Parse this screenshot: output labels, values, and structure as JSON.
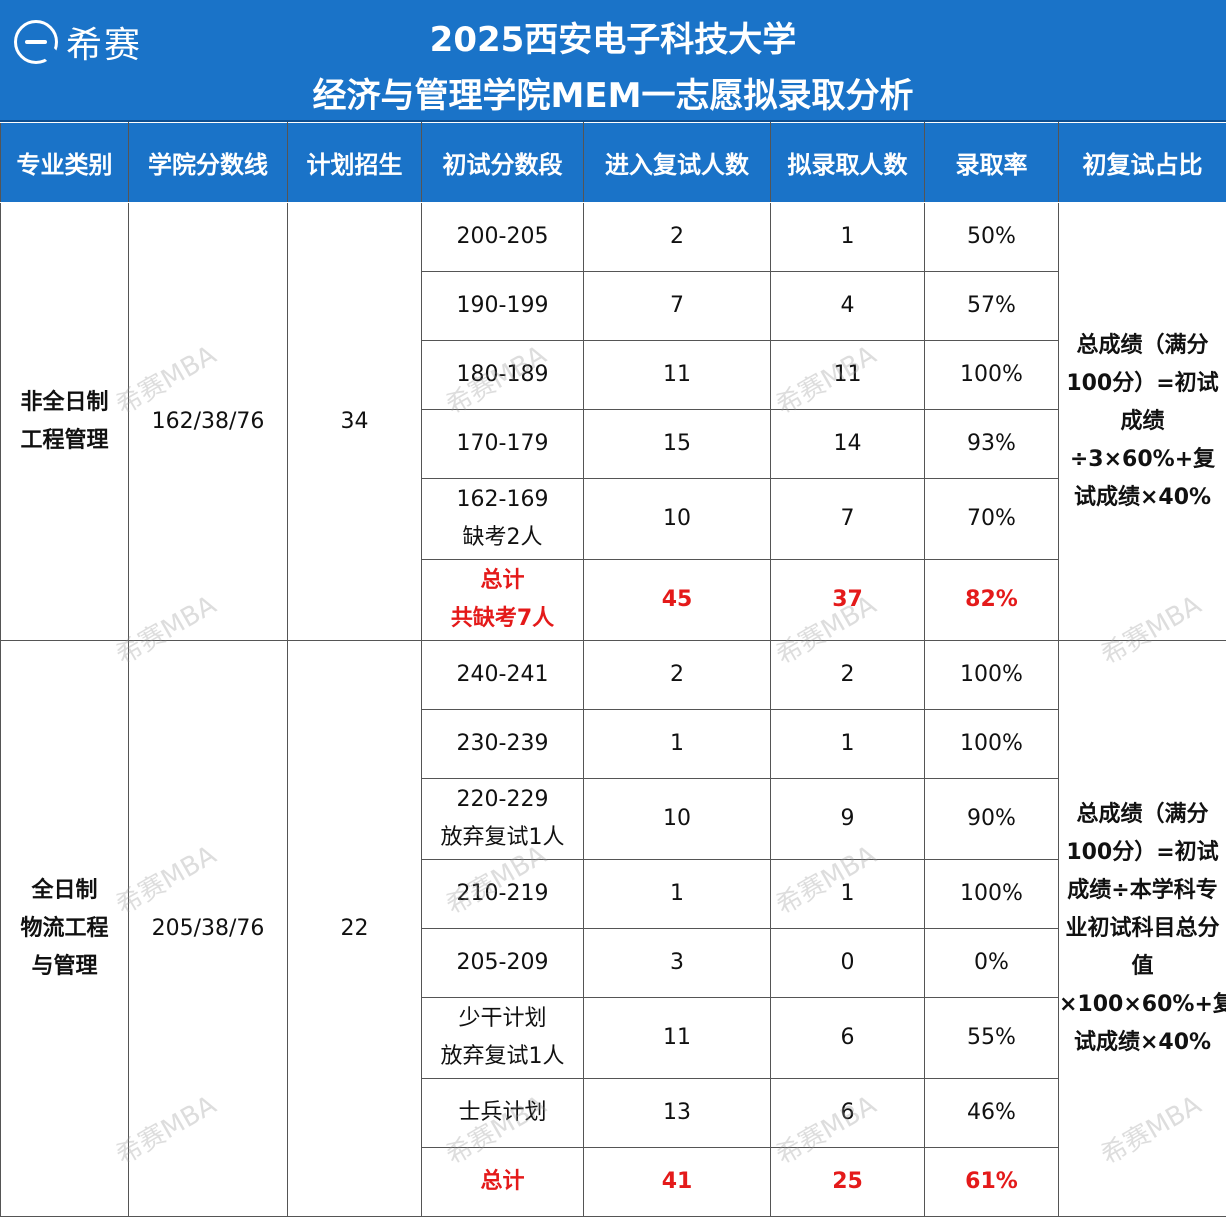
{
  "brand": {
    "name": "希赛",
    "logo": "e-circle-logo"
  },
  "title": {
    "line1": "2025西安电子科技大学",
    "line2": "经济与管理学院MEM一志愿拟录取分析"
  },
  "columns": [
    "专业类别",
    "学院分数线",
    "计划招生",
    "初试分数段",
    "进入复试人数",
    "拟录取人数",
    "录取率",
    "初复试占比"
  ],
  "groups": [
    {
      "category": "非全日制\n工程管理",
      "cutoff": "162/38/76",
      "plan": "34",
      "note": "总成绩（满分100分）=初试成绩÷3×60%+复试成绩×40%",
      "rows": [
        {
          "range": "200-205",
          "interview": "2",
          "admit": "1",
          "rate": "50%"
        },
        {
          "range": "190-199",
          "interview": "7",
          "admit": "4",
          "rate": "57%"
        },
        {
          "range": "180-189",
          "interview": "11",
          "admit": "11",
          "rate": "100%"
        },
        {
          "range": "170-179",
          "interview": "15",
          "admit": "14",
          "rate": "93%"
        },
        {
          "range": "162-169\n缺考2人",
          "interview": "10",
          "admit": "7",
          "rate": "70%"
        }
      ],
      "total": {
        "label": "总计\n共缺考7人",
        "interview": "45",
        "admit": "37",
        "rate": "82%"
      }
    },
    {
      "category": "全日制\n物流工程\n与管理",
      "cutoff": "205/38/76",
      "plan": "22",
      "note": "总成绩（满分100分）=初试成绩÷本学科专业初试科目总分值×100×60%+复试成绩×40%",
      "rows": [
        {
          "range": "240-241",
          "interview": "2",
          "admit": "2",
          "rate": "100%"
        },
        {
          "range": "230-239",
          "interview": "1",
          "admit": "1",
          "rate": "100%"
        },
        {
          "range": "220-229\n放弃复试1人",
          "interview": "10",
          "admit": "9",
          "rate": "90%"
        },
        {
          "range": "210-219",
          "interview": "1",
          "admit": "1",
          "rate": "100%"
        },
        {
          "range": "205-209",
          "interview": "3",
          "admit": "0",
          "rate": "0%"
        },
        {
          "range": "少干计划\n放弃复试1人",
          "interview": "11",
          "admit": "6",
          "rate": "55%"
        },
        {
          "range": "士兵计划",
          "interview": "13",
          "admit": "6",
          "rate": "46%"
        }
      ],
      "total": {
        "label": "总计",
        "interview": "41",
        "admit": "25",
        "rate": "61%"
      }
    }
  ],
  "watermark": "希赛MBA",
  "colors": {
    "header_bg": "#1a73c8",
    "total_text": "#e41a1a"
  }
}
